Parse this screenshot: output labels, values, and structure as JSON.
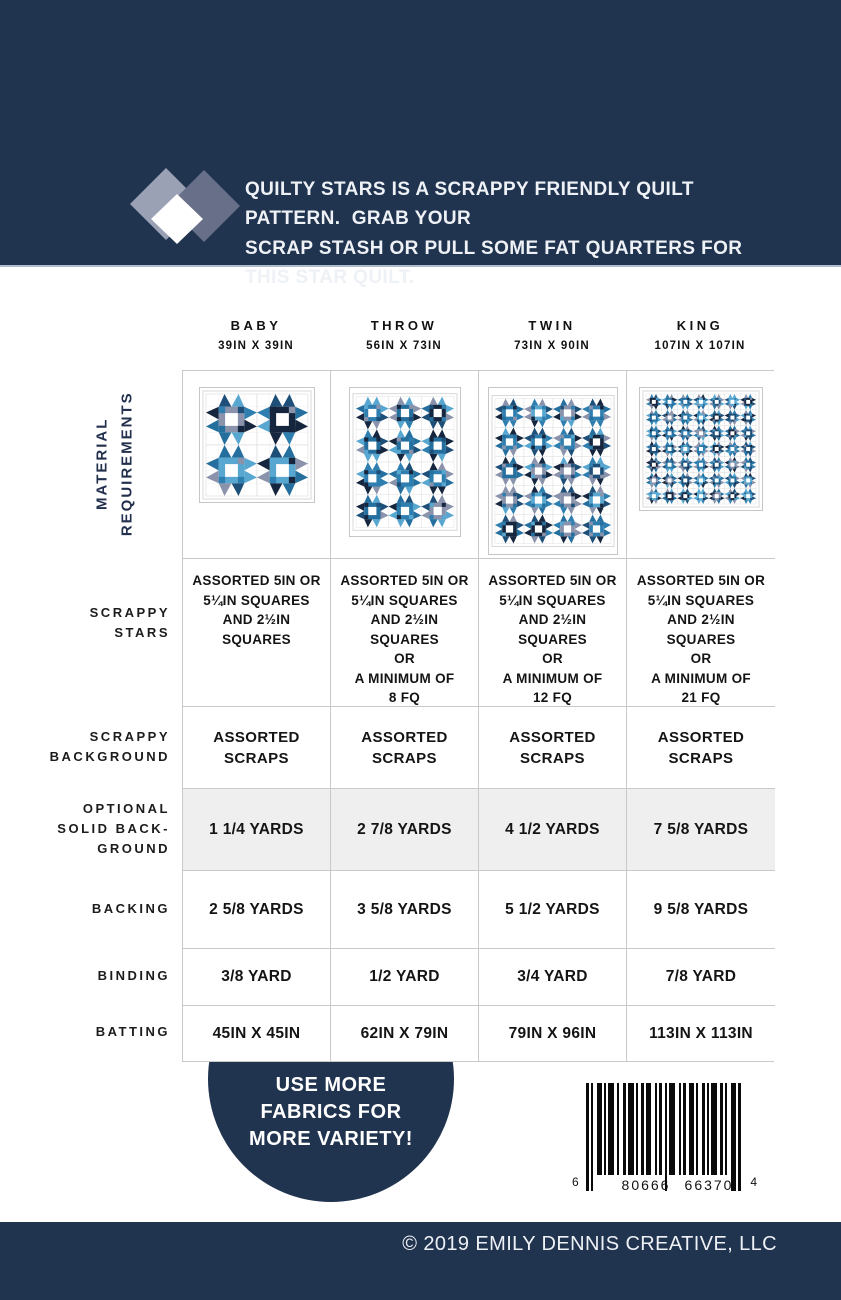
{
  "header": {
    "line1": "QUILTY STARS IS A SCRAPPY FRIENDLY QUILT PATTERN.  GRAB YOUR",
    "line2": "SCRAP STASH OR PULL SOME FAT QUARTERS FOR THIS STAR QUILT."
  },
  "materials": {
    "side_label": "MATERIAL\nREQUIREMENTS",
    "columns": [
      {
        "name": "BABY",
        "dimensions": "39IN X 39IN",
        "preview": {
          "cols": 2,
          "rows": 2
        }
      },
      {
        "name": "THROW",
        "dimensions": "56IN X 73IN",
        "preview": {
          "cols": 3,
          "rows": 4
        }
      },
      {
        "name": "TWIN",
        "dimensions": "73IN X 90IN",
        "preview": {
          "cols": 4,
          "rows": 5
        }
      },
      {
        "name": "KING",
        "dimensions": "107IN X 107IN",
        "preview": {
          "cols": 7,
          "rows": 7
        }
      }
    ],
    "rows": [
      {
        "label": "SCRAPPY\nSTARS",
        "values": [
          "ASSORTED 5IN OR\n5¼IN SQUARES\nAND 2½IN\nSQUARES",
          "ASSORTED 5IN OR\n5¼IN SQUARES\nAND 2½IN\nSQUARES\nOR\nA MINIMUM OF\n8 FQ",
          "ASSORTED 5IN OR\n5¼IN SQUARES\nAND 2½IN\nSQUARES\nOR\nA MINIMUM OF\n12 FQ",
          "ASSORTED 5IN OR\n5¼IN SQUARES\nAND 2½IN\nSQUARES\nOR\nA MINIMUM OF\n21 FQ"
        ]
      },
      {
        "label": "SCRAPPY\nBACKGROUND",
        "values": [
          "ASSORTED\nSCRAPS",
          "ASSORTED\nSCRAPS",
          "ASSORTED\nSCRAPS",
          "ASSORTED\nSCRAPS"
        ]
      },
      {
        "label": "OPTIONAL\nSOLID BACK-\nGROUND",
        "values": [
          "1 1/4 YARDS",
          "2 7/8 YARDS",
          "4 1/2 YARDS",
          "7 5/8 YARDS"
        ],
        "shaded": true
      },
      {
        "label": "BACKING",
        "values": [
          "2 5/8 YARDS",
          "3 5/8 YARDS",
          "5 1/2 YARDS",
          "9 5/8 YARDS"
        ]
      },
      {
        "label": "BINDING",
        "values": [
          "3/8 YARD",
          "1/2 YARD",
          "3/4 YARD",
          "7/8 YARD"
        ]
      },
      {
        "label": "BATTING",
        "values": [
          "45IN X 45IN",
          "62IN X 79IN",
          "79IN X 96IN",
          "113IN X 113IN"
        ]
      }
    ]
  },
  "badge": {
    "text": "USE MORE\nFABRICS FOR\nMORE VARIETY!"
  },
  "barcode": {
    "left_digit": "6",
    "group1": "80666",
    "group2": "66370",
    "right_digit": "4"
  },
  "footer": {
    "copyright": "© 2019 EMILY DENNIS CREATIVE, LLC"
  },
  "colors": {
    "navy": "#20334f",
    "star_blue": "#2e7fb0",
    "star_dark": "#16263e",
    "star_slate": "#8a93ab",
    "star_light": "#57a7d1",
    "shaded_row": "#efefef",
    "border": "#c9c9c9",
    "logo_left": "#9aa1b4",
    "logo_right": "#687089"
  }
}
